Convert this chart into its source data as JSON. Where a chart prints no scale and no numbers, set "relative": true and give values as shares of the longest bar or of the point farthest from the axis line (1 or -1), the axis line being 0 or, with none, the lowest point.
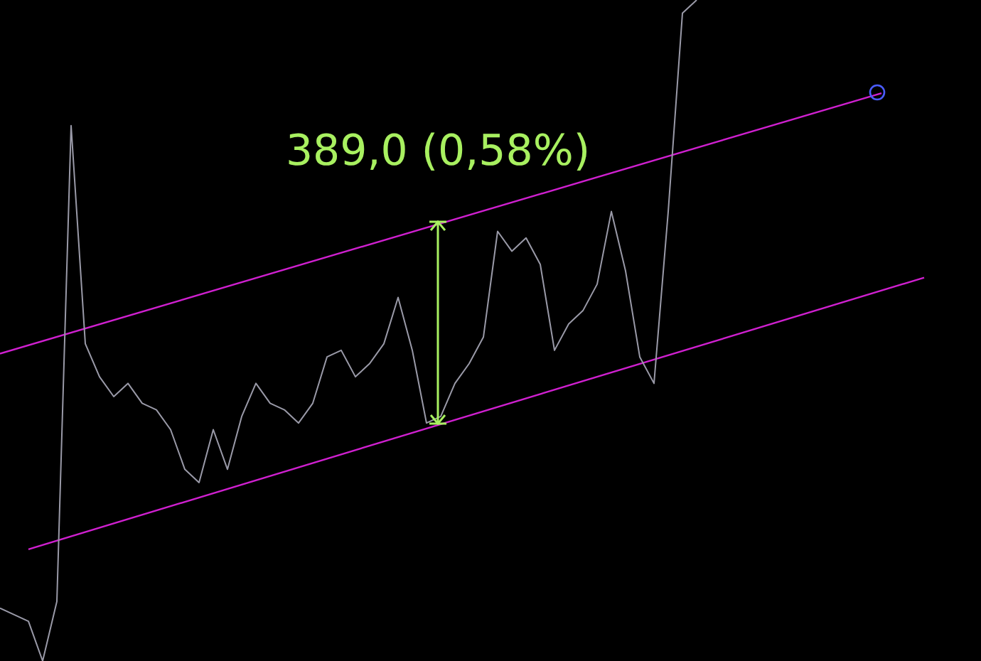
{
  "chart_data": {
    "type": "line",
    "relative": true,
    "legend": false,
    "categories": [
      null,
      null,
      null,
      null,
      null,
      null,
      null,
      null,
      null,
      null,
      null,
      null,
      null,
      null,
      null,
      null,
      null,
      null,
      null,
      null,
      null,
      null,
      null,
      null,
      null,
      null,
      null,
      null,
      null,
      null,
      null,
      null,
      null,
      null,
      null,
      null,
      null,
      null,
      null,
      null,
      null,
      null,
      null,
      null,
      null,
      null,
      null,
      null,
      null,
      null,
      null,
      null,
      null,
      null,
      null,
      null,
      null,
      null,
      null,
      null,
      null,
      null,
      null,
      null,
      null,
      null,
      null,
      null,
      null,
      null
    ],
    "series": [
      {
        "color": "#9a9aa8",
        "values": [
          0.08,
          0.07,
          0.06,
          0.0,
          0.09,
          0.81,
          0.48,
          0.43,
          0.4,
          0.42,
          0.39,
          0.38,
          0.35,
          0.29,
          0.27,
          0.35,
          0.29,
          0.37,
          0.42,
          0.39,
          0.38,
          0.36,
          0.39,
          0.46,
          0.47,
          0.43,
          0.45,
          0.48,
          0.55,
          0.47,
          0.36,
          0.37,
          0.42,
          0.45,
          0.49,
          0.65,
          0.62,
          0.64,
          0.6,
          0.47,
          0.51,
          0.53,
          0.57,
          0.68,
          0.59,
          0.46,
          0.42,
          0.68,
          0.98,
          1.0,
          null,
          null,
          null,
          null,
          null,
          null,
          null,
          null,
          null,
          null,
          null,
          null,
          null,
          null,
          null,
          null,
          null,
          null,
          null,
          null
        ]
      },
      {
        "color": "#d020d0",
        "values": [
          0.465,
          null,
          null,
          null,
          null,
          null,
          null,
          null,
          null,
          null,
          null,
          null,
          null,
          null,
          null,
          null,
          null,
          null,
          null,
          null,
          null,
          null,
          null,
          null,
          null,
          null,
          null,
          null,
          null,
          null,
          null,
          null,
          null,
          null,
          null,
          null,
          null,
          null,
          null,
          null,
          null,
          null,
          null,
          null,
          null,
          null,
          null,
          null,
          null,
          null,
          null,
          null,
          null,
          null,
          null,
          null,
          null,
          null,
          null,
          null,
          null,
          null,
          0.859,
          null,
          null,
          null,
          null,
          null,
          null,
          null
        ]
      },
      {
        "color": "#d020d0",
        "values": [
          null,
          null,
          0.169,
          null,
          null,
          null,
          null,
          null,
          null,
          null,
          null,
          null,
          null,
          null,
          null,
          null,
          null,
          null,
          null,
          null,
          null,
          null,
          null,
          null,
          null,
          null,
          null,
          null,
          null,
          null,
          null,
          null,
          null,
          null,
          null,
          null,
          null,
          null,
          null,
          null,
          null,
          null,
          null,
          null,
          null,
          null,
          null,
          null,
          null,
          null,
          null,
          null,
          null,
          null,
          null,
          null,
          null,
          null,
          null,
          null,
          null,
          null,
          null,
          null,
          null,
          0.58,
          null,
          null,
          null,
          null
        ]
      }
    ],
    "annotations": [
      "389,0 (0,58%)"
    ]
  }
}
